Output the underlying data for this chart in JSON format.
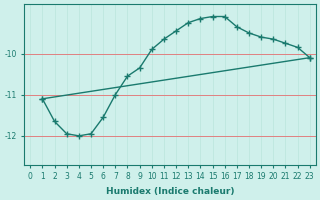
{
  "xlabel": "Humidex (Indice chaleur)",
  "ylabel": "",
  "background_color": "#cff0eb",
  "line_color": "#1a7a6e",
  "grid_color_v": "#c0e8e0",
  "grid_color_h": "#f08080",
  "xlim": [
    -0.5,
    23.5
  ],
  "ylim": [
    -12.7,
    -8.8
  ],
  "yticks": [
    -12,
    -11,
    -10
  ],
  "xticks": [
    0,
    1,
    2,
    3,
    4,
    5,
    6,
    7,
    8,
    9,
    10,
    11,
    12,
    13,
    14,
    15,
    16,
    17,
    18,
    19,
    20,
    21,
    22,
    23
  ],
  "line1_x": [
    1,
    2,
    3,
    4,
    5,
    6,
    7,
    8,
    9,
    10,
    11,
    12,
    13,
    14,
    15,
    16,
    17,
    18,
    19,
    20,
    21,
    22,
    23
  ],
  "line1_y": [
    -11.1,
    -11.65,
    -11.95,
    -12.0,
    -11.95,
    -11.55,
    -11.0,
    -10.55,
    -10.35,
    -9.9,
    -9.65,
    -9.45,
    -9.25,
    -9.15,
    -9.1,
    -9.1,
    -9.35,
    -9.5,
    -9.6,
    -9.65,
    -9.75,
    -9.85,
    -10.1
  ],
  "line2_x": [
    1,
    23
  ],
  "line2_y": [
    -11.1,
    -10.1
  ]
}
